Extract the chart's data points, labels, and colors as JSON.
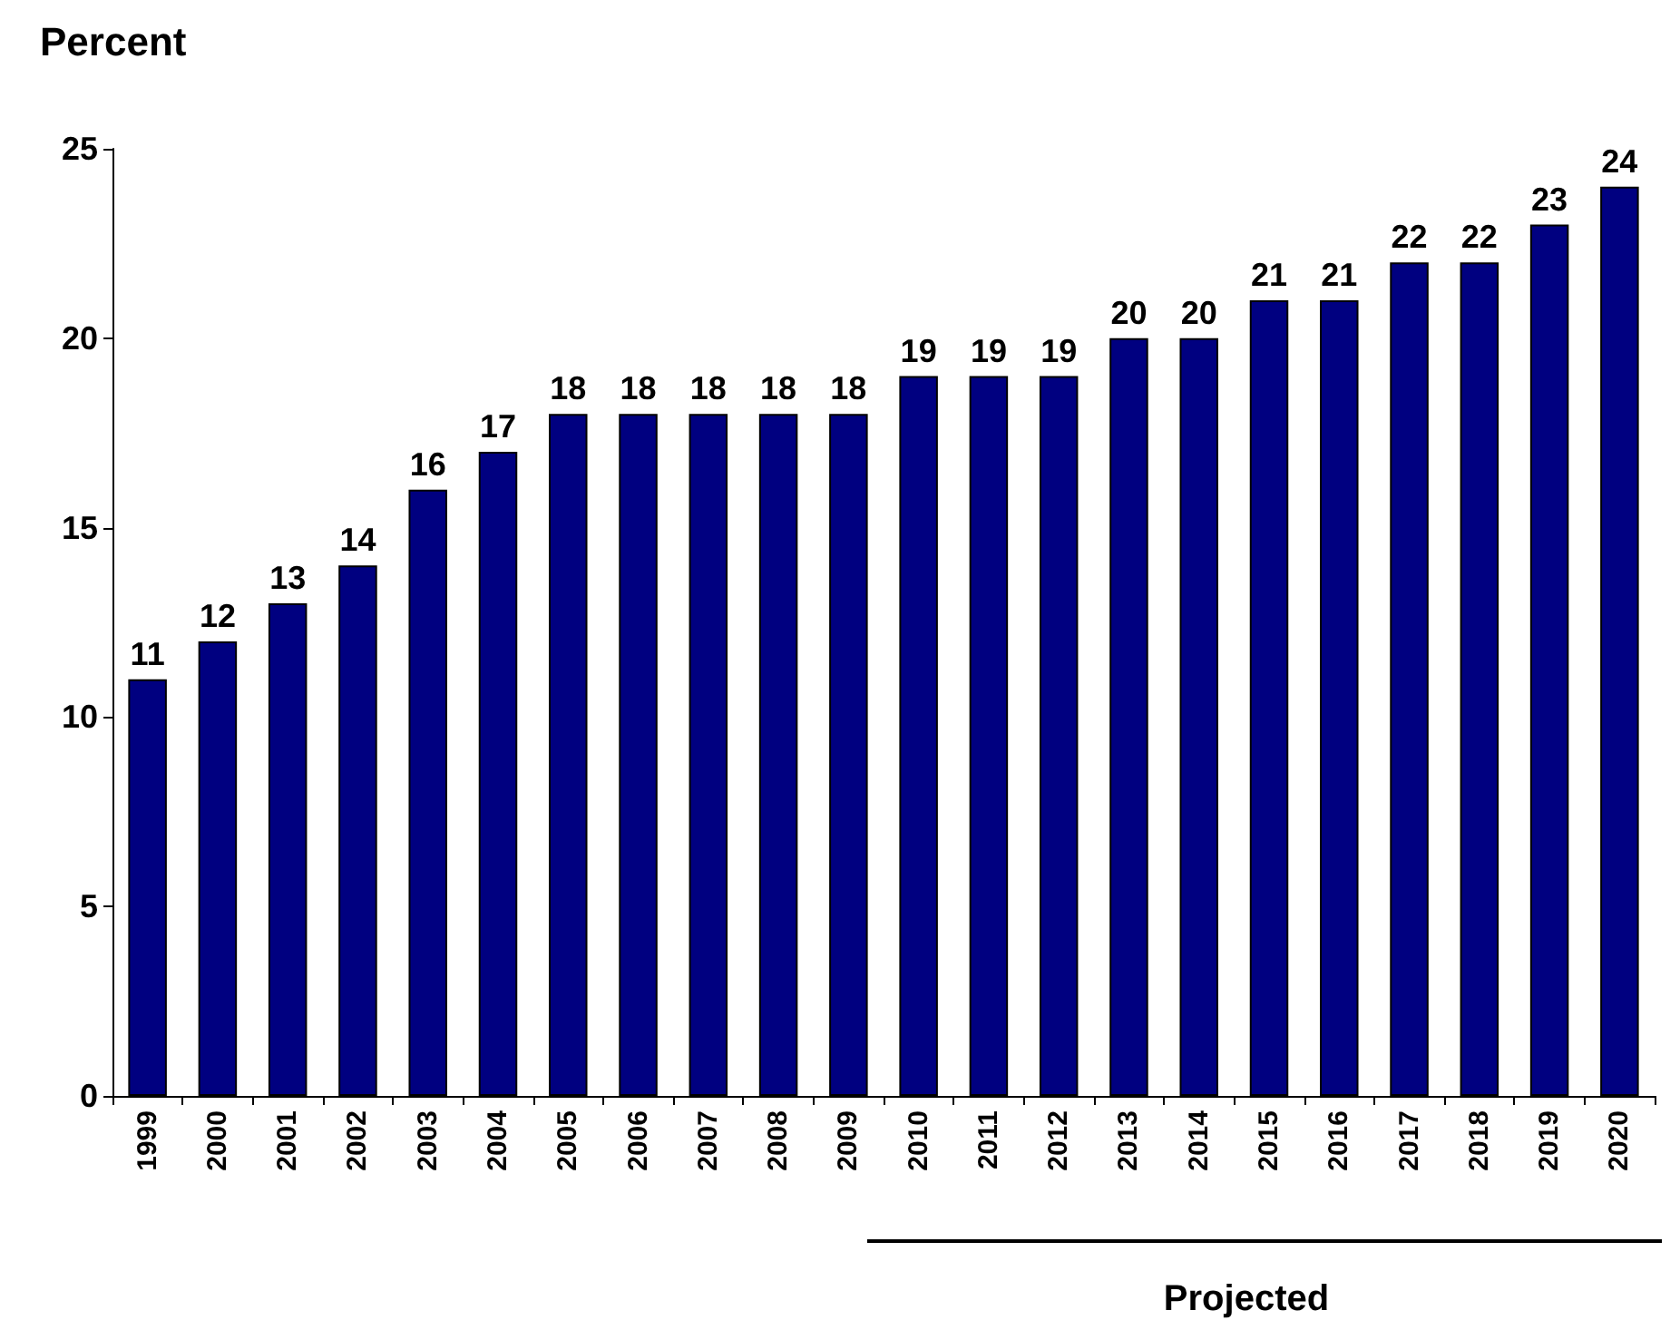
{
  "chart_data": {
    "type": "bar",
    "ylabel": "Percent",
    "categories": [
      "1999",
      "2000",
      "2001",
      "2002",
      "2003",
      "2004",
      "2005",
      "2006",
      "2007",
      "2008",
      "2009",
      "2010",
      "2011",
      "2012",
      "2013",
      "2014",
      "2015",
      "2016",
      "2017",
      "2018",
      "2019",
      "2020"
    ],
    "values": [
      11,
      12,
      13,
      14,
      16,
      17,
      18,
      18,
      18,
      18,
      18,
      19,
      19,
      19,
      20,
      20,
      21,
      21,
      22,
      22,
      23,
      24
    ],
    "color": "#000080",
    "ylim": [
      0,
      25
    ],
    "yticks": [
      0,
      5,
      10,
      15,
      20,
      25
    ],
    "grid": false,
    "data_labels": true,
    "annotations": [
      "Projected"
    ]
  }
}
